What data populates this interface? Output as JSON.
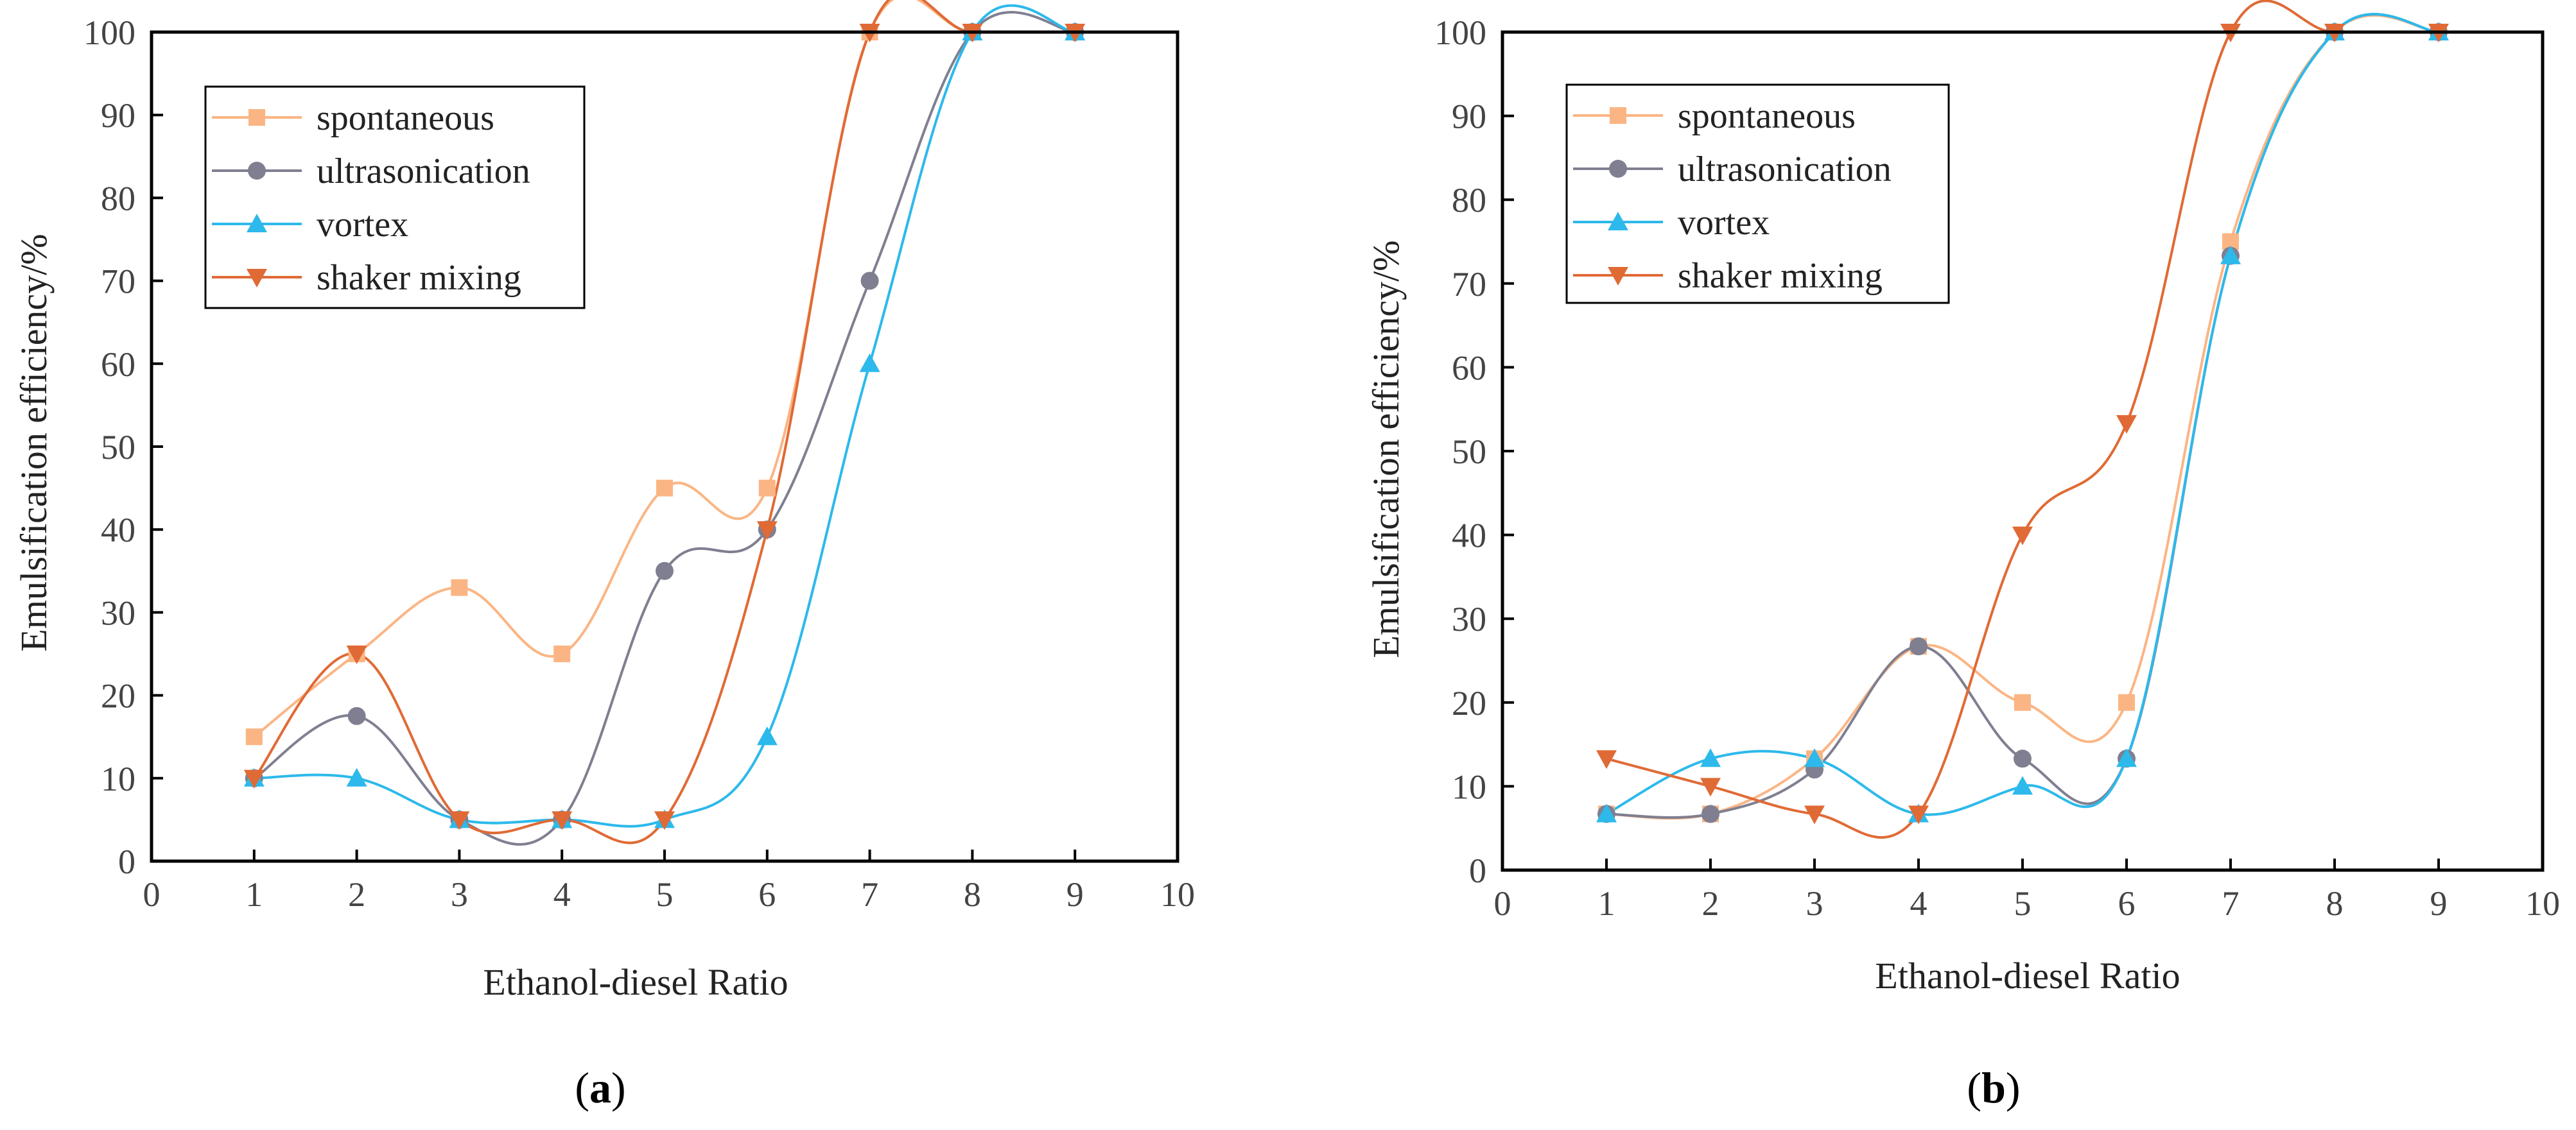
{
  "chart_data": [
    {
      "panel": "a",
      "type": "line",
      "xlabel": "Ethanol-diesel Ratio",
      "ylabel": "Emulsification efficiency/%",
      "xlim": [
        0,
        10
      ],
      "ylim": [
        0,
        100
      ],
      "xticks": [
        "0",
        "1",
        "2",
        "3",
        "4",
        "5",
        "6",
        "7",
        "8",
        "9",
        "10"
      ],
      "yticks": [
        "0",
        "10",
        "20",
        "30",
        "40",
        "50",
        "60",
        "70",
        "80",
        "90",
        "100"
      ],
      "x": [
        1,
        2,
        3,
        4,
        5,
        6,
        7,
        8,
        9
      ],
      "legend_position": "top-left",
      "series": [
        {
          "name": "spontaneous",
          "color": "#FBB584",
          "marker": "square",
          "values": [
            15,
            25,
            33,
            25,
            45,
            45,
            100,
            100,
            100
          ]
        },
        {
          "name": "ultrasonication",
          "color": "#7F7F91",
          "marker": "circle",
          "values": [
            10,
            17.5,
            5,
            5,
            35,
            40,
            70,
            100,
            100
          ]
        },
        {
          "name": "vortex",
          "color": "#2DB9EB",
          "marker": "triangle-up",
          "values": [
            10,
            10,
            5,
            5,
            5,
            15,
            60,
            100,
            100
          ]
        },
        {
          "name": "shaker mixing",
          "color": "#E06A35",
          "marker": "triangle-down",
          "values": [
            10,
            25,
            5,
            5,
            5,
            40,
            100,
            100,
            100
          ]
        }
      ]
    },
    {
      "panel": "b",
      "type": "line",
      "xlabel": "Ethanol-diesel Ratio",
      "ylabel": "Emulsification efficiency/%",
      "xlim": [
        0,
        10
      ],
      "ylim": [
        0,
        100
      ],
      "xticks": [
        "0",
        "1",
        "2",
        "3",
        "4",
        "5",
        "6",
        "7",
        "8",
        "9",
        "10"
      ],
      "yticks": [
        "0",
        "10",
        "20",
        "30",
        "40",
        "50",
        "60",
        "70",
        "80",
        "90",
        "100"
      ],
      "x": [
        1,
        2,
        3,
        4,
        5,
        6,
        7,
        8,
        9
      ],
      "legend_position": "top-left",
      "series": [
        {
          "name": "spontaneous",
          "color": "#FBB584",
          "marker": "square",
          "values": [
            6.7,
            6.7,
            13.3,
            26.7,
            20,
            20,
            75,
            100,
            100
          ]
        },
        {
          "name": "ultrasonication",
          "color": "#7F7F91",
          "marker": "circle",
          "values": [
            6.7,
            6.7,
            12,
            26.7,
            13.3,
            13.3,
            73.3,
            100,
            100
          ]
        },
        {
          "name": "vortex",
          "color": "#2DB9EB",
          "marker": "triangle-up",
          "values": [
            6.7,
            13.3,
            13.3,
            6.7,
            10,
            13.3,
            73.3,
            100,
            100
          ]
        },
        {
          "name": "shaker mixing",
          "color": "#E06A35",
          "marker": "triangle-down",
          "values": [
            13.3,
            10,
            6.7,
            6.7,
            40,
            53.3,
            100,
            100,
            100
          ]
        }
      ]
    }
  ],
  "panel_labels": [
    {
      "open": "(",
      "letter": "a",
      "close": ")"
    },
    {
      "open": "(",
      "letter": "b",
      "close": ")"
    }
  ]
}
